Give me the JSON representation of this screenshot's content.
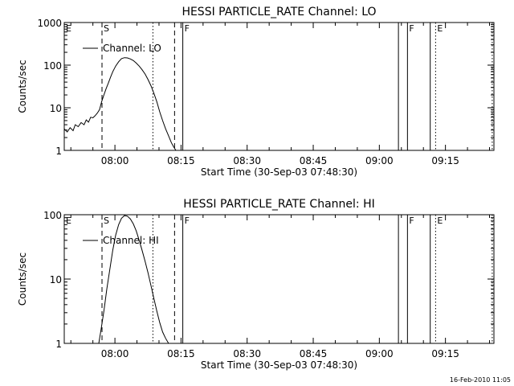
{
  "stamp": "16-Feb-2010 11:05",
  "chart_data": [
    {
      "type": "line",
      "title": "HESSI PARTICLE_RATE Channel: LO",
      "xlabel": "Start Time (30-Sep-03 07:48:30)",
      "ylabel": "Counts/sec",
      "yscale": "log",
      "legend_label": "Channel: LO",
      "legend_placement": "upper-left",
      "x_ticks": [
        "08:00",
        "08:15",
        "08:30",
        "08:45",
        "09:00",
        "09:15"
      ],
      "x_tick_values": [
        690,
        1590,
        2490,
        3390,
        4290,
        5190
      ],
      "xlim": [
        0,
        5850
      ],
      "ylim": [
        1,
        1000
      ],
      "y_ticks": [
        1,
        10,
        100,
        1000
      ],
      "y_tick_labels": [
        "1",
        "10",
        "100",
        "1000"
      ],
      "event_markers": [
        {
          "label": "E",
          "x": 0,
          "style": "solid"
        },
        {
          "label": "S",
          "x": 514,
          "style": "dashed"
        },
        {
          "label": "",
          "x": 1207,
          "style": "dotted"
        },
        {
          "label": "",
          "x": 1502,
          "style": "dashed"
        },
        {
          "label": "F",
          "x": 1614,
          "style": "solid"
        },
        {
          "label": "",
          "x": 4550,
          "style": "solid"
        },
        {
          "label": "F",
          "x": 4673,
          "style": "solid"
        },
        {
          "label": "",
          "x": 4983,
          "style": "solid"
        },
        {
          "label": "E",
          "x": 5056,
          "style": "dotted"
        },
        {
          "label": "",
          "x": 5827,
          "style": "dotted"
        }
      ],
      "series": [
        {
          "name": "Channel: LO",
          "x": [
            0,
            40,
            80,
            120,
            150,
            190,
            230,
            270,
            300,
            330,
            360,
            390,
            420,
            450,
            480,
            510,
            540,
            570,
            600,
            630,
            660,
            700,
            740,
            780,
            820,
            860,
            900,
            940,
            980,
            1020,
            1060,
            1100,
            1140,
            1180,
            1220,
            1260,
            1300,
            1340,
            1380,
            1420,
            1460,
            1490,
            1520,
            1550,
            1570
          ],
          "y": [
            3.2,
            2.7,
            3.4,
            2.9,
            4.0,
            3.6,
            4.5,
            4.0,
            5.2,
            4.6,
            6.0,
            5.8,
            6.5,
            7.5,
            9.0,
            14,
            20,
            28,
            38,
            52,
            70,
            95,
            120,
            142,
            150,
            148,
            140,
            128,
            112,
            95,
            78,
            62,
            46,
            33,
            22,
            14,
            8,
            5,
            3.2,
            2.2,
            1.5,
            1.2,
            1.0,
            1.0,
            1.0
          ]
        }
      ]
    },
    {
      "type": "line",
      "title": "HESSI PARTICLE_RATE Channel: HI",
      "xlabel": "Start Time (30-Sep-03 07:48:30)",
      "ylabel": "Counts/sec",
      "yscale": "log",
      "legend_label": "Channel: HI",
      "legend_placement": "upper-left",
      "x_ticks": [
        "08:00",
        "08:15",
        "08:30",
        "08:45",
        "09:00",
        "09:15"
      ],
      "x_tick_values": [
        690,
        1590,
        2490,
        3390,
        4290,
        5190
      ],
      "xlim": [
        0,
        5850
      ],
      "ylim": [
        1,
        100
      ],
      "y_ticks": [
        1,
        10,
        100
      ],
      "y_tick_labels": [
        "1",
        "10",
        "100"
      ],
      "event_markers": [
        {
          "label": "E",
          "x": 0,
          "style": "solid"
        },
        {
          "label": "S",
          "x": 514,
          "style": "dashed"
        },
        {
          "label": "",
          "x": 1207,
          "style": "dotted"
        },
        {
          "label": "",
          "x": 1502,
          "style": "dashed"
        },
        {
          "label": "F",
          "x": 1614,
          "style": "solid"
        },
        {
          "label": "",
          "x": 4550,
          "style": "solid"
        },
        {
          "label": "F",
          "x": 4673,
          "style": "solid"
        },
        {
          "label": "",
          "x": 4983,
          "style": "solid"
        },
        {
          "label": "E",
          "x": 5056,
          "style": "dotted"
        },
        {
          "label": "",
          "x": 5827,
          "style": "dotted"
        }
      ],
      "series": [
        {
          "name": "Channel: HI",
          "x": [
            470,
            500,
            540,
            580,
            620,
            660,
            700,
            740,
            780,
            820,
            860,
            900,
            940,
            980,
            1020,
            1060,
            1100,
            1140,
            1180,
            1220,
            1260,
            1300,
            1340,
            1380,
            1420,
            1460,
            1480
          ],
          "y": [
            1.0,
            1.6,
            3.2,
            7,
            14,
            28,
            48,
            70,
            88,
            97,
            95,
            86,
            72,
            56,
            40,
            28,
            19,
            12.5,
            8,
            5,
            3.2,
            2.1,
            1.5,
            1.2,
            1.0,
            1.0,
            1.0
          ]
        }
      ]
    }
  ]
}
